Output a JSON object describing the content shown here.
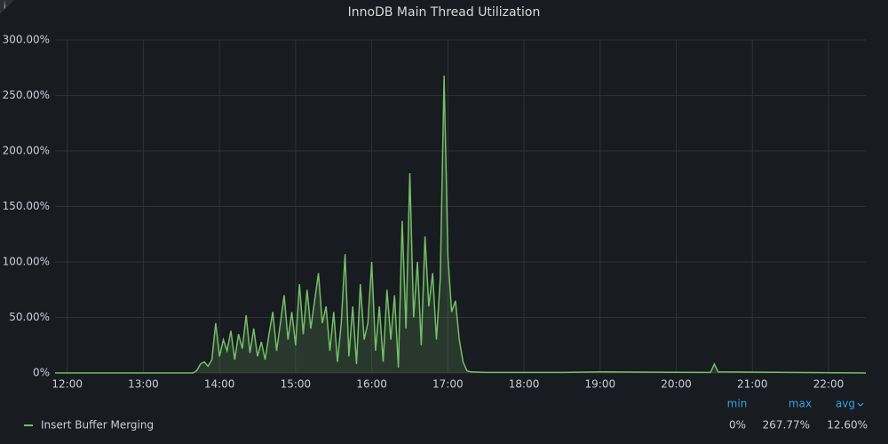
{
  "chart_data": {
    "type": "line",
    "title": "InnoDB Main Thread Utilization",
    "x": [
      11.84,
      13.65,
      13.7,
      13.75,
      13.8,
      13.85,
      13.9,
      13.95,
      14.0,
      14.05,
      14.1,
      14.15,
      14.2,
      14.25,
      14.3,
      14.35,
      14.4,
      14.45,
      14.5,
      14.55,
      14.6,
      14.65,
      14.7,
      14.75,
      14.8,
      14.85,
      14.9,
      14.95,
      15.0,
      15.05,
      15.1,
      15.15,
      15.2,
      15.25,
      15.3,
      15.35,
      15.4,
      15.45,
      15.5,
      15.55,
      15.6,
      15.65,
      15.7,
      15.75,
      15.8,
      15.85,
      15.9,
      15.95,
      16.0,
      16.05,
      16.1,
      16.15,
      16.2,
      16.25,
      16.3,
      16.35,
      16.4,
      16.45,
      16.5,
      16.55,
      16.6,
      16.65,
      16.7,
      16.75,
      16.8,
      16.85,
      16.9,
      16.95,
      17.0,
      17.05,
      17.1,
      17.15,
      17.2,
      17.25,
      17.3,
      17.5,
      18.5,
      19.0,
      20.45,
      20.5,
      20.55,
      21.5,
      22.49
    ],
    "series": [
      {
        "name": "Insert Buffer Merging",
        "color": "#73bf69",
        "values": [
          0,
          0,
          2,
          8,
          10,
          6,
          12,
          45,
          15,
          30,
          20,
          38,
          12,
          35,
          22,
          52,
          18,
          40,
          15,
          28,
          12,
          35,
          55,
          20,
          45,
          70,
          30,
          55,
          25,
          80,
          35,
          75,
          40,
          65,
          90,
          45,
          60,
          20,
          55,
          10,
          45,
          107,
          15,
          60,
          8,
          80,
          30,
          45,
          100,
          20,
          60,
          10,
          75,
          30,
          70,
          5,
          137,
          40,
          180,
          50,
          100,
          25,
          123,
          60,
          90,
          30,
          85,
          267.77,
          105,
          55,
          65,
          30,
          10,
          2,
          1,
          0.5,
          0.5,
          1,
          0.5,
          8,
          1,
          0.5,
          0
        ]
      }
    ],
    "xlim": [
      11.84,
      22.49
    ],
    "xticks": [
      {
        "value": 12,
        "label": "12:00"
      },
      {
        "value": 13,
        "label": "13:00"
      },
      {
        "value": 14,
        "label": "14:00"
      },
      {
        "value": 15,
        "label": "15:00"
      },
      {
        "value": 16,
        "label": "16:00"
      },
      {
        "value": 17,
        "label": "17:00"
      },
      {
        "value": 18,
        "label": "18:00"
      },
      {
        "value": 19,
        "label": "19:00"
      },
      {
        "value": 20,
        "label": "20:00"
      },
      {
        "value": 21,
        "label": "21:00"
      },
      {
        "value": 22,
        "label": "22:00"
      }
    ],
    "ylim": [
      0,
      300
    ],
    "yticks": [
      {
        "value": 0,
        "label": "0%"
      },
      {
        "value": 50,
        "label": "50.00%"
      },
      {
        "value": 100,
        "label": "100.00%"
      },
      {
        "value": 150,
        "label": "150.00%"
      },
      {
        "value": 200,
        "label": "200.00%"
      },
      {
        "value": 250,
        "label": "250.00%"
      },
      {
        "value": 300,
        "label": "300.00%"
      }
    ],
    "grid": true,
    "legend_columns": [
      "min",
      "max",
      "avg"
    ],
    "legend_values": [
      "0%",
      "267.77%",
      "12.60%"
    ]
  }
}
